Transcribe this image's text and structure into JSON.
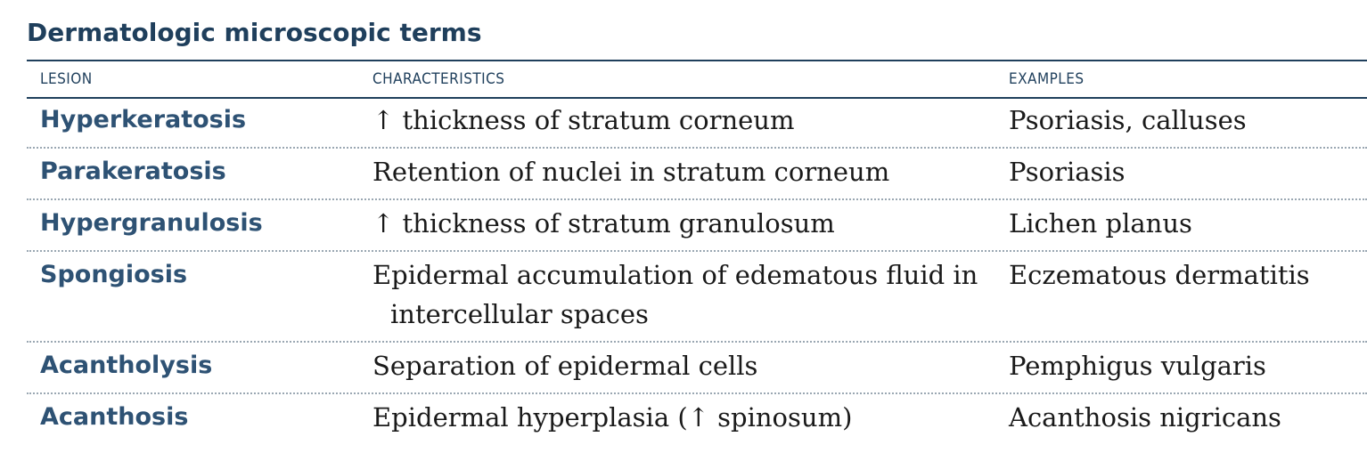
{
  "title": "Dermatologic microscopic terms",
  "columns": {
    "lesion": "LESION",
    "characteristics": "CHARACTERISTICS",
    "examples": "EXAMPLES"
  },
  "rows": [
    {
      "lesion": "Hyperkeratosis",
      "characteristics": "↑ thickness of stratum corneum",
      "characteristics_cont": "",
      "examples": "Psoriasis, calluses"
    },
    {
      "lesion": "Parakeratosis",
      "characteristics": "Retention of nuclei in stratum corneum",
      "characteristics_cont": "",
      "examples": "Psoriasis"
    },
    {
      "lesion": "Hypergranulosis",
      "characteristics": "↑ thickness of stratum granulosum",
      "characteristics_cont": "",
      "examples": "Lichen planus"
    },
    {
      "lesion": "Spongiosis",
      "characteristics": "Epidermal accumulation of edematous fluid in",
      "characteristics_cont": "intercellular spaces",
      "examples": "Eczematous dermatitis"
    },
    {
      "lesion": "Acantholysis",
      "characteristics": "Separation of epidermal cells",
      "characteristics_cont": "",
      "examples": "Pemphigus vulgaris"
    },
    {
      "lesion": "Acanthosis",
      "characteristics": "Epidermal hyperplasia (↑ spinosum)",
      "characteristics_cont": "",
      "examples": "Acanthosis nigricans"
    }
  ]
}
